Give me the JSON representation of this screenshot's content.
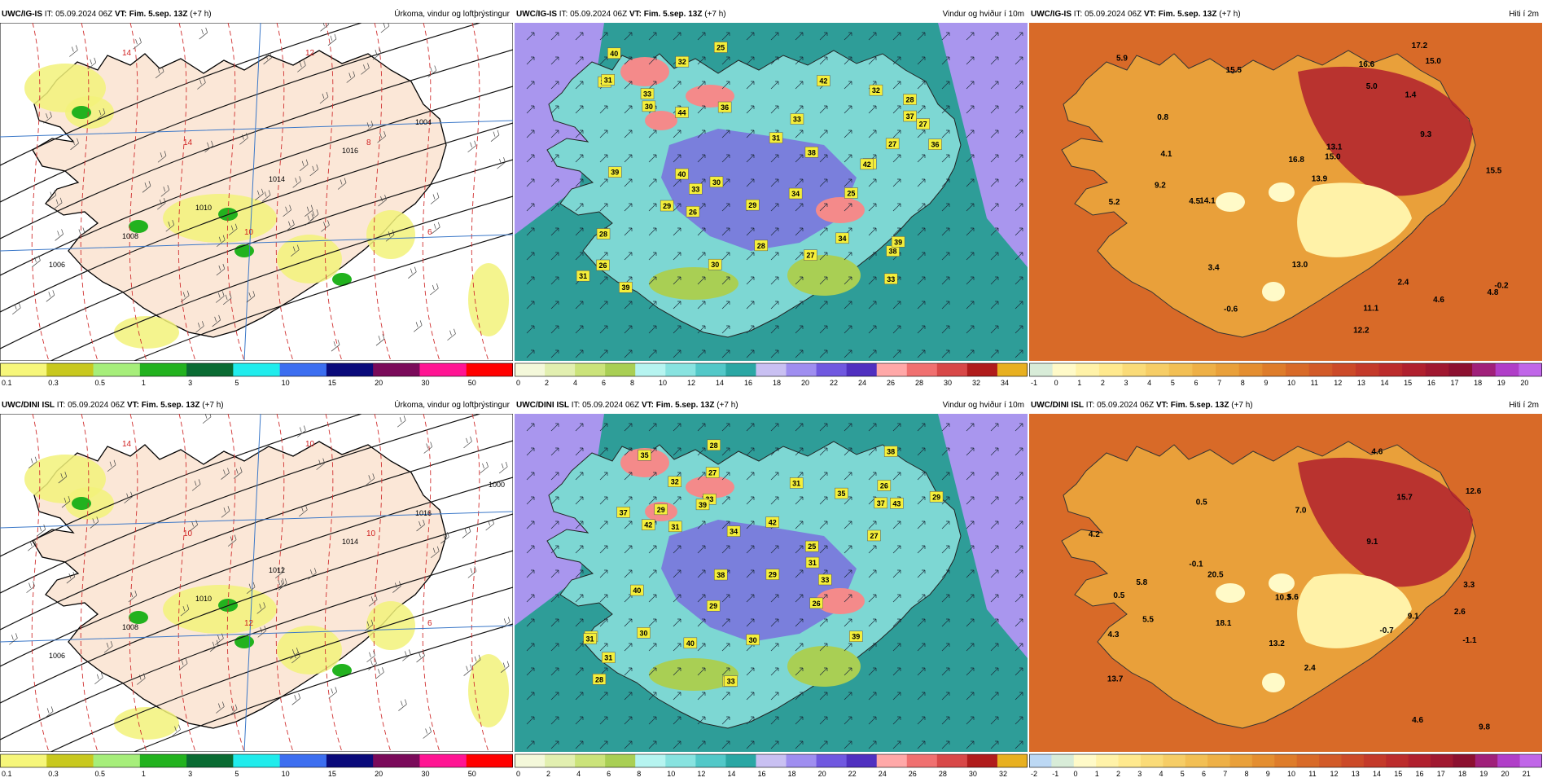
{
  "panels": [
    {
      "model": "UWC/IG-IS",
      "it_label": "IT:",
      "it": "05.09.2024 06Z",
      "vt_label": "VT:",
      "vt": "Fim. 5.sep. 13Z",
      "lead": "(+7 h)",
      "title": "Úrkoma, vindur og loftþrýstingur",
      "map_type": "precip",
      "colorbar": {
        "ticks": [
          "0.1",
          "0.3",
          "0.5",
          "1",
          "3",
          "5",
          "10",
          "15",
          "20",
          "30",
          "50"
        ],
        "colors": [
          "#f6f67a",
          "#c8c81e",
          "#a6ee7a",
          "#22b21e",
          "#0a6b32",
          "#20ecec",
          "#3c6ef0",
          "#0a0a7a",
          "#7a0a5a",
          "#ff1493",
          "#ff0000"
        ]
      },
      "annotations": {
        "isobars": [
          "1006",
          "1008",
          "1010",
          "1014",
          "1016",
          "1004"
        ],
        "temps": [
          "14",
          "14",
          "10",
          "12",
          "8",
          "6"
        ]
      }
    },
    {
      "model": "UWC/IG-IS",
      "it_label": "IT:",
      "it": "05.09.2024 06Z",
      "vt_label": "VT:",
      "vt": "Fim. 5.sep. 13Z",
      "lead": "(+7 h)",
      "title": "Vindur og hviður í 10m",
      "map_type": "wind",
      "colorbar": {
        "ticks": [
          "0",
          "2",
          "4",
          "6",
          "8",
          "10",
          "12",
          "14",
          "16",
          "18",
          "20",
          "22",
          "24",
          "26",
          "28",
          "30",
          "32",
          "34"
        ],
        "colors": [
          "#f4f8da",
          "#e2efb0",
          "#cbe37a",
          "#a9cf54",
          "#b6f4f0",
          "#88e3e0",
          "#52c8c8",
          "#2aa7a4",
          "#c9c0f2",
          "#9f8ef0",
          "#7058e0",
          "#5030c0",
          "#ffa8a8",
          "#f07070",
          "#d84848",
          "#b01c1c",
          "#e8b020"
        ]
      },
      "annotations": {
        "gusts": [
          "30",
          "28",
          "30",
          "27",
          "44",
          "40",
          "39",
          "37",
          "39",
          "33",
          "34",
          "28",
          "31",
          "42",
          "33",
          "36",
          "32",
          "29",
          "36",
          "40",
          "34",
          "38",
          "36",
          "27",
          "26",
          "31",
          "28",
          "33",
          "37",
          "38",
          "42",
          "29",
          "30",
          "31",
          "25",
          "32",
          "39",
          "27",
          "33",
          "25",
          "26"
        ]
      }
    },
    {
      "model": "UWC/IG-IS",
      "it_label": "IT:",
      "it": "05.09.2024 06Z",
      "vt_label": "VT:",
      "vt": "Fim. 5.sep. 13Z",
      "lead": "(+7 h)",
      "title": "Hiti í 2m",
      "map_type": "temp",
      "colorbar": {
        "ticks": [
          "-1",
          "0",
          "1",
          "2",
          "3",
          "4",
          "5",
          "6",
          "7",
          "8",
          "9",
          "10",
          "11",
          "12",
          "13",
          "14",
          "15",
          "16",
          "17",
          "18",
          "19",
          "20"
        ],
        "colors": [
          "#d8ecd8",
          "#fffac8",
          "#fff2a8",
          "#ffe98e",
          "#fadb78",
          "#f6cd66",
          "#f2bf54",
          "#eeb046",
          "#e9a03a",
          "#e48e30",
          "#de7c2a",
          "#d86a28",
          "#d25a28",
          "#cc4a28",
          "#c43a2a",
          "#bc2c2c",
          "#b0202e",
          "#a01830",
          "#8c1030",
          "#a0207a",
          "#b03ec8",
          "#c066e8"
        ]
      },
      "annotations": {
        "temps": [
          "15.5",
          "13.9",
          "3.4",
          "16.8",
          "5.0",
          "13.1",
          "9.3",
          "4.1",
          "16.6",
          "14.1",
          "15.0",
          "5.2",
          "15.5",
          "4.6",
          "17.2",
          "4.5",
          "2.4",
          "0.8",
          "-0.6",
          "-0.2",
          "15.0",
          "4.8",
          "11.1",
          "5.9",
          "9.2",
          "13.0",
          "1.4",
          "12.2"
        ]
      }
    },
    {
      "model": "UWC/DINI ISL",
      "it_label": "IT:",
      "it": "05.09.2024 06Z",
      "vt_label": "VT:",
      "vt": "Fim. 5.sep. 13Z",
      "lead": "(+7 h)",
      "title": "Úrkoma, vindur og loftþrýstingur",
      "map_type": "precip",
      "colorbar": {
        "ticks": [
          "0.1",
          "0.3",
          "0.5",
          "1",
          "3",
          "5",
          "10",
          "15",
          "20",
          "30",
          "50"
        ],
        "colors": [
          "#f6f67a",
          "#c8c81e",
          "#a6ee7a",
          "#22b21e",
          "#0a6b32",
          "#20ecec",
          "#3c6ef0",
          "#0a0a7a",
          "#7a0a5a",
          "#ff1493",
          "#ff0000"
        ]
      },
      "annotations": {
        "isobars": [
          "1006",
          "1008",
          "1010",
          "1012",
          "1014",
          "1016",
          "1000"
        ],
        "temps": [
          "14",
          "10",
          "12",
          "10",
          "10",
          "6"
        ]
      }
    },
    {
      "model": "UWC/DINI ISL",
      "it_label": "IT:",
      "it": "05.09.2024 06Z",
      "vt_label": "VT:",
      "vt": "Fim. 5.sep. 13Z",
      "lead": "(+7 h)",
      "title": "Vindur og hviður í 10m",
      "map_type": "wind",
      "colorbar": {
        "ticks": [
          "0",
          "2",
          "4",
          "6",
          "8",
          "10",
          "12",
          "14",
          "16",
          "18",
          "20",
          "22",
          "24",
          "26",
          "28",
          "30",
          "32"
        ],
        "colors": [
          "#f4f8da",
          "#e2efb0",
          "#cbe37a",
          "#a9cf54",
          "#b6f4f0",
          "#88e3e0",
          "#52c8c8",
          "#2aa7a4",
          "#c9c0f2",
          "#9f8ef0",
          "#7058e0",
          "#5030c0",
          "#ffa8a8",
          "#f07070",
          "#d84848",
          "#b01c1c",
          "#e8b020"
        ]
      },
      "annotations": {
        "gusts": [
          "29",
          "30",
          "25",
          "27",
          "43",
          "33",
          "37",
          "27",
          "33",
          "32",
          "42",
          "39",
          "38",
          "40",
          "39",
          "34",
          "37",
          "29",
          "31",
          "35",
          "35",
          "31",
          "26",
          "33",
          "31",
          "38",
          "40",
          "42",
          "31",
          "29",
          "28",
          "26",
          "31",
          "30",
          "28",
          "27",
          "31",
          "29"
        ]
      }
    },
    {
      "model": "UWC/DINI ISL",
      "it_label": "IT:",
      "it": "05.09.2024 06Z",
      "vt_label": "VT:",
      "vt": "Fim. 5.sep. 13Z",
      "lead": "(+7 h)",
      "title": "Hiti í 2m",
      "map_type": "temp",
      "colorbar": {
        "ticks": [
          "-2",
          "-1",
          "0",
          "1",
          "2",
          "3",
          "4",
          "5",
          "6",
          "7",
          "8",
          "9",
          "10",
          "11",
          "12",
          "13",
          "14",
          "15",
          "16",
          "17",
          "18",
          "19",
          "20",
          "21"
        ],
        "colors": [
          "#bcd8f4",
          "#d8ecd8",
          "#fffac8",
          "#fff2a8",
          "#ffe98e",
          "#fadb78",
          "#f6cd66",
          "#f2bf54",
          "#eeb046",
          "#e9a03a",
          "#e48e30",
          "#de7c2a",
          "#d86a28",
          "#d25a28",
          "#cc4a28",
          "#c43a2a",
          "#bc2c2c",
          "#b0202e",
          "#a01830",
          "#8c1030",
          "#a0207a",
          "#b03ec8",
          "#c066e8"
        ]
      },
      "annotations": {
        "temps": [
          "12.6",
          "9.8",
          "3.3",
          "18.1",
          "7.0",
          "15.7",
          "20.5",
          "9.1",
          "13.7",
          "2.6",
          "5.5",
          "4.2",
          "10.3",
          "4.6",
          "5.8",
          "4.3",
          "13.2",
          "2.4",
          "0.5",
          "-1.1",
          "-0.7",
          "4.6",
          "5.6",
          "9.1",
          "-0.1",
          "0.5"
        ]
      }
    }
  ]
}
